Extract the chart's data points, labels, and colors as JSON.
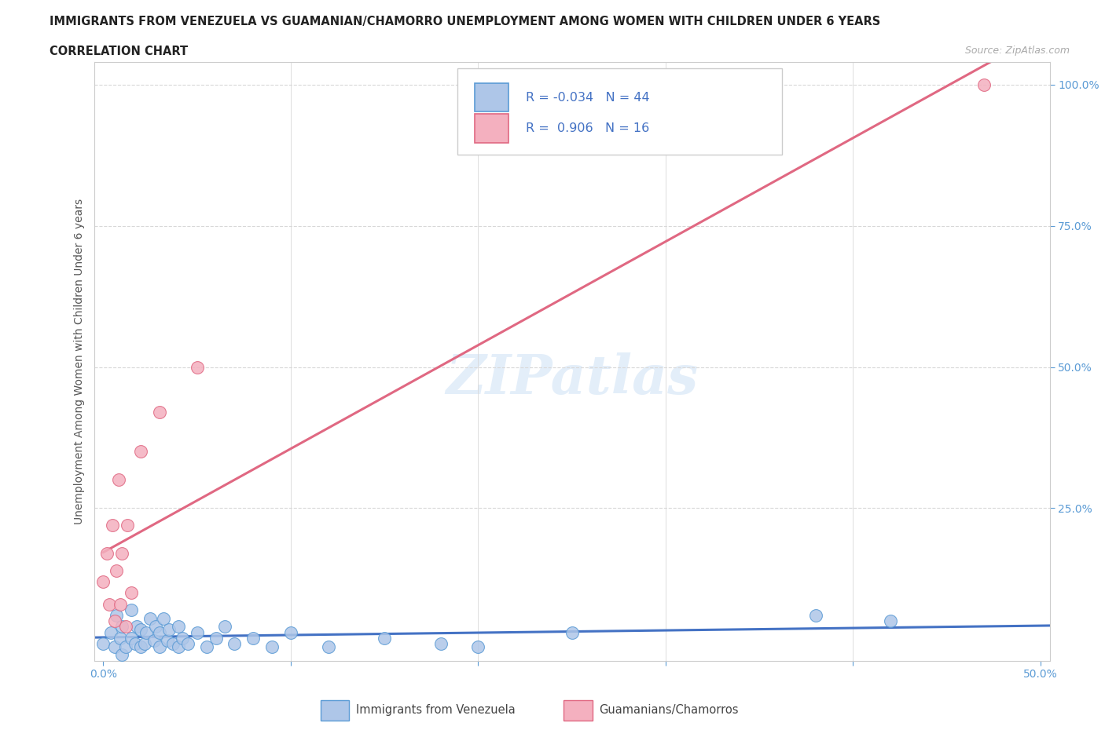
{
  "title_line1": "IMMIGRANTS FROM VENEZUELA VS GUAMANIAN/CHAMORRO UNEMPLOYMENT AMONG WOMEN WITH CHILDREN UNDER 6 YEARS",
  "title_line2": "CORRELATION CHART",
  "source_text": "Source: ZipAtlas.com",
  "ylabel": "Unemployment Among Women with Children Under 6 years",
  "xlim": [
    -0.005,
    0.505
  ],
  "ylim": [
    -0.02,
    1.04
  ],
  "xtick_labels": [
    "0.0%",
    "",
    "",
    "",
    "",
    "50.0%"
  ],
  "xtick_vals": [
    0.0,
    0.1,
    0.2,
    0.3,
    0.4,
    0.5
  ],
  "ytick_labels": [
    "25.0%",
    "50.0%",
    "75.0%",
    "100.0%"
  ],
  "ytick_vals": [
    0.25,
    0.5,
    0.75,
    1.0
  ],
  "background_color": "#ffffff",
  "grid_color": "#d8d8d8",
  "venezuela_color": "#aec6e8",
  "guam_color": "#f4b0bf",
  "venezuela_edge_color": "#5b9bd5",
  "guam_edge_color": "#e06882",
  "trendline_venezuela_color": "#4472c4",
  "trendline_guam_color": "#e06882",
  "R_venezuela": -0.034,
  "N_venezuela": 44,
  "R_guam": 0.906,
  "N_guam": 16,
  "watermark": "ZIPatlas",
  "legend_label_venezuela": "Immigrants from Venezuela",
  "legend_label_guam": "Guamanians/Chamorros",
  "tick_color": "#5b9bd5",
  "legend_text_color": "#333333",
  "legend_rn_color": "#4472c4",
  "venezuela_x": [
    0.0,
    0.004,
    0.006,
    0.007,
    0.009,
    0.01,
    0.01,
    0.012,
    0.015,
    0.015,
    0.017,
    0.018,
    0.02,
    0.02,
    0.022,
    0.023,
    0.025,
    0.027,
    0.028,
    0.03,
    0.03,
    0.032,
    0.034,
    0.035,
    0.037,
    0.04,
    0.04,
    0.042,
    0.045,
    0.05,
    0.055,
    0.06,
    0.065,
    0.07,
    0.08,
    0.09,
    0.1,
    0.12,
    0.15,
    0.18,
    0.2,
    0.25,
    0.38,
    0.42
  ],
  "venezuela_y": [
    0.01,
    0.03,
    0.005,
    0.06,
    0.02,
    -0.01,
    0.04,
    0.005,
    0.02,
    0.07,
    0.01,
    0.04,
    0.005,
    0.035,
    0.01,
    0.03,
    0.055,
    0.015,
    0.04,
    0.005,
    0.03,
    0.055,
    0.015,
    0.035,
    0.01,
    0.005,
    0.04,
    0.02,
    0.01,
    0.03,
    0.005,
    0.02,
    0.04,
    0.01,
    0.02,
    0.005,
    0.03,
    0.005,
    0.02,
    0.01,
    0.005,
    0.03,
    0.06,
    0.05
  ],
  "guam_x": [
    0.0,
    0.002,
    0.003,
    0.005,
    0.006,
    0.007,
    0.008,
    0.009,
    0.01,
    0.012,
    0.013,
    0.015,
    0.02,
    0.03,
    0.05,
    0.47
  ],
  "guam_y": [
    0.12,
    0.17,
    0.08,
    0.22,
    0.05,
    0.14,
    0.3,
    0.08,
    0.17,
    0.04,
    0.22,
    0.1,
    0.35,
    0.42,
    0.5,
    1.0
  ]
}
